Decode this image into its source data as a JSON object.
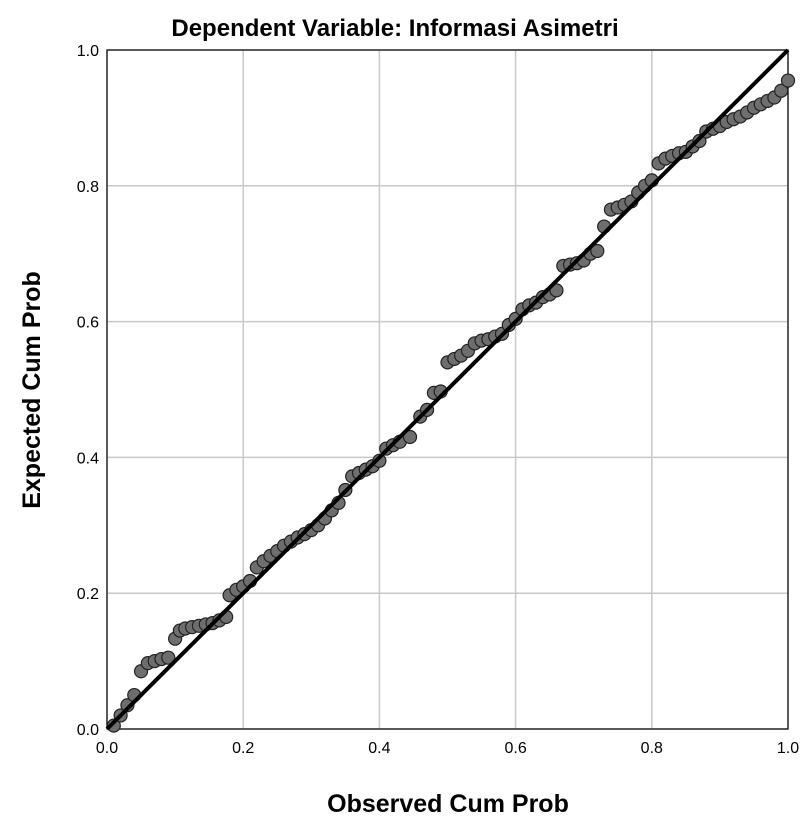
{
  "chart_data": {
    "type": "scatter",
    "title": "Dependent Variable: Informasi Asimetri",
    "xlabel": "Observed Cum Prob",
    "ylabel": "Expected Cum Prob",
    "xlim": [
      0.0,
      1.0
    ],
    "ylim": [
      0.0,
      1.0
    ],
    "x_ticks": [
      "0.0",
      "0.2",
      "0.4",
      "0.6",
      "0.8",
      "1.0"
    ],
    "y_ticks": [
      "0.0",
      "0.2",
      "0.4",
      "0.6",
      "0.8",
      "1.0"
    ],
    "grid": true,
    "reference_line": {
      "from": [
        0.0,
        0.0
      ],
      "to": [
        1.0,
        1.0
      ]
    },
    "colors": {
      "marker_fill": "#6e6e6e",
      "marker_stroke": "#222222",
      "line": "#000000",
      "grid": "#c8c8c8",
      "frame": "#000000"
    },
    "points": [
      [
        0.01,
        0.005
      ],
      [
        0.02,
        0.02
      ],
      [
        0.03,
        0.035
      ],
      [
        0.04,
        0.05
      ],
      [
        0.05,
        0.085
      ],
      [
        0.06,
        0.097
      ],
      [
        0.07,
        0.1
      ],
      [
        0.08,
        0.103
      ],
      [
        0.09,
        0.105
      ],
      [
        0.1,
        0.133
      ],
      [
        0.107,
        0.145
      ],
      [
        0.115,
        0.148
      ],
      [
        0.125,
        0.15
      ],
      [
        0.135,
        0.152
      ],
      [
        0.145,
        0.154
      ],
      [
        0.155,
        0.156
      ],
      [
        0.165,
        0.16
      ],
      [
        0.175,
        0.165
      ],
      [
        0.18,
        0.197
      ],
      [
        0.19,
        0.205
      ],
      [
        0.2,
        0.21
      ],
      [
        0.21,
        0.218
      ],
      [
        0.22,
        0.238
      ],
      [
        0.23,
        0.247
      ],
      [
        0.24,
        0.255
      ],
      [
        0.25,
        0.262
      ],
      [
        0.26,
        0.27
      ],
      [
        0.27,
        0.276
      ],
      [
        0.28,
        0.282
      ],
      [
        0.29,
        0.287
      ],
      [
        0.3,
        0.293
      ],
      [
        0.31,
        0.3
      ],
      [
        0.32,
        0.31
      ],
      [
        0.33,
        0.322
      ],
      [
        0.34,
        0.333
      ],
      [
        0.35,
        0.352
      ],
      [
        0.36,
        0.372
      ],
      [
        0.37,
        0.377
      ],
      [
        0.38,
        0.382
      ],
      [
        0.39,
        0.387
      ],
      [
        0.4,
        0.395
      ],
      [
        0.41,
        0.413
      ],
      [
        0.42,
        0.418
      ],
      [
        0.43,
        0.423
      ],
      [
        0.445,
        0.43
      ],
      [
        0.46,
        0.46
      ],
      [
        0.47,
        0.47
      ],
      [
        0.48,
        0.495
      ],
      [
        0.49,
        0.497
      ],
      [
        0.5,
        0.54
      ],
      [
        0.51,
        0.545
      ],
      [
        0.52,
        0.55
      ],
      [
        0.53,
        0.557
      ],
      [
        0.54,
        0.568
      ],
      [
        0.55,
        0.572
      ],
      [
        0.56,
        0.574
      ],
      [
        0.57,
        0.578
      ],
      [
        0.58,
        0.582
      ],
      [
        0.59,
        0.595
      ],
      [
        0.6,
        0.604
      ],
      [
        0.61,
        0.618
      ],
      [
        0.62,
        0.624
      ],
      [
        0.63,
        0.628
      ],
      [
        0.64,
        0.636
      ],
      [
        0.65,
        0.64
      ],
      [
        0.66,
        0.646
      ],
      [
        0.67,
        0.682
      ],
      [
        0.68,
        0.684
      ],
      [
        0.69,
        0.686
      ],
      [
        0.7,
        0.69
      ],
      [
        0.71,
        0.7
      ],
      [
        0.72,
        0.704
      ],
      [
        0.73,
        0.74
      ],
      [
        0.74,
        0.765
      ],
      [
        0.75,
        0.768
      ],
      [
        0.76,
        0.772
      ],
      [
        0.77,
        0.777
      ],
      [
        0.78,
        0.79
      ],
      [
        0.79,
        0.8
      ],
      [
        0.8,
        0.808
      ],
      [
        0.81,
        0.833
      ],
      [
        0.82,
        0.84
      ],
      [
        0.83,
        0.844
      ],
      [
        0.84,
        0.848
      ],
      [
        0.85,
        0.85
      ],
      [
        0.86,
        0.858
      ],
      [
        0.87,
        0.866
      ],
      [
        0.88,
        0.88
      ],
      [
        0.89,
        0.884
      ],
      [
        0.9,
        0.888
      ],
      [
        0.91,
        0.894
      ],
      [
        0.92,
        0.898
      ],
      [
        0.93,
        0.902
      ],
      [
        0.94,
        0.908
      ],
      [
        0.95,
        0.915
      ],
      [
        0.96,
        0.92
      ],
      [
        0.97,
        0.925
      ],
      [
        0.98,
        0.93
      ],
      [
        0.99,
        0.94
      ],
      [
        1.0,
        0.955
      ]
    ]
  }
}
